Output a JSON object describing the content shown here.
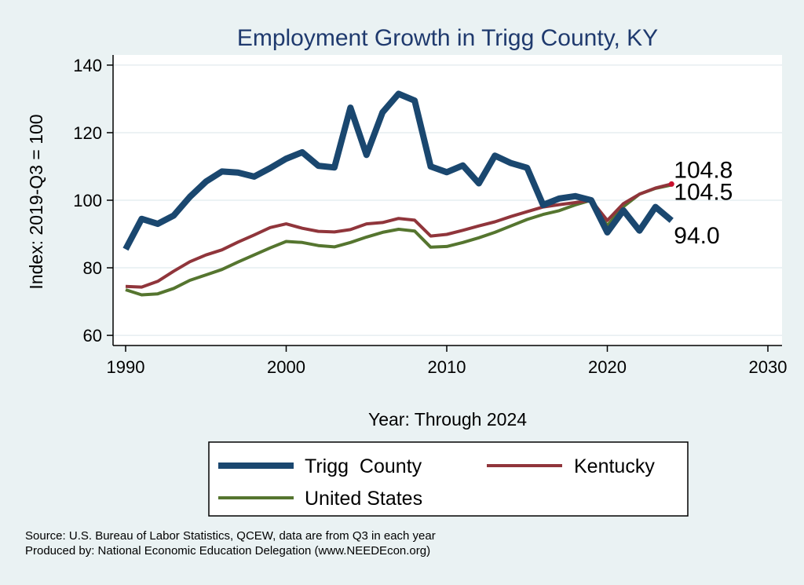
{
  "chart_data": {
    "type": "line",
    "title": "Employment Growth in Trigg County, KY",
    "xlabel": "Year: Through 2024",
    "ylabel": "Index: 2019-Q3 = 100",
    "xlim": [
      1990,
      2030
    ],
    "ylim": [
      57,
      143
    ],
    "xticks": [
      1990,
      2000,
      2010,
      2020,
      2030
    ],
    "yticks": [
      60,
      80,
      100,
      120,
      140
    ],
    "grid": true,
    "x": [
      1990,
      1991,
      1992,
      1993,
      1994,
      1995,
      1996,
      1997,
      1998,
      1999,
      2000,
      2001,
      2002,
      2003,
      2004,
      2005,
      2006,
      2007,
      2008,
      2009,
      2010,
      2011,
      2012,
      2013,
      2014,
      2015,
      2016,
      2017,
      2018,
      2019,
      2020,
      2021,
      2022,
      2023,
      2024
    ],
    "series": [
      {
        "name": "Trigg  County",
        "color": "#1a476f",
        "width": 8,
        "end_label": "94.0",
        "values": [
          85.5,
          94.5,
          93,
          95.5,
          101,
          105.5,
          108.5,
          108.2,
          107,
          109.5,
          112.3,
          114.2,
          110.2,
          109.7,
          127.4,
          113.4,
          126,
          131.5,
          129.5,
          110,
          108.3,
          110.3,
          105,
          113.2,
          111,
          109.6,
          98.6,
          100.5,
          101.2,
          100,
          90.5,
          97,
          91,
          98,
          94
        ]
      },
      {
        "name": "Kentucky",
        "color": "#90353b",
        "width": 4,
        "end_label": "104.8",
        "values": [
          74.5,
          74.3,
          76,
          79,
          81.8,
          83.8,
          85.3,
          87.6,
          89.7,
          91.9,
          93,
          91.7,
          90.8,
          90.6,
          91.3,
          93,
          93.4,
          94.6,
          94.1,
          89.4,
          89.9,
          91.1,
          92.4,
          93.6,
          95.2,
          96.6,
          98,
          98.7,
          99.3,
          100,
          94,
          99,
          101.8,
          103.6,
          104.8
        ]
      },
      {
        "name": "United States",
        "color": "#55752f",
        "width": 4,
        "end_label": "104.5",
        "values": [
          73.5,
          72,
          72.3,
          73.9,
          76.3,
          77.9,
          79.5,
          81.7,
          83.8,
          85.9,
          87.8,
          87.5,
          86.6,
          86.2,
          87.5,
          89.1,
          90.5,
          91.4,
          90.9,
          86.1,
          86.3,
          87.5,
          88.9,
          90.5,
          92.4,
          94.3,
          95.8,
          96.9,
          98.6,
          100,
          92.5,
          98.1,
          101.8,
          103.5,
          104.5
        ]
      }
    ],
    "legend": {
      "position": "bottom",
      "entries": [
        "Trigg  County",
        "Kentucky",
        "United States"
      ]
    }
  },
  "source_note": "Source: U.S. Bureau of Labor Statistics, QCEW, data are from Q3 in each year",
  "produced_by": "Produced by: National Economic Education Delegation (www.NEEDEcon.org)"
}
